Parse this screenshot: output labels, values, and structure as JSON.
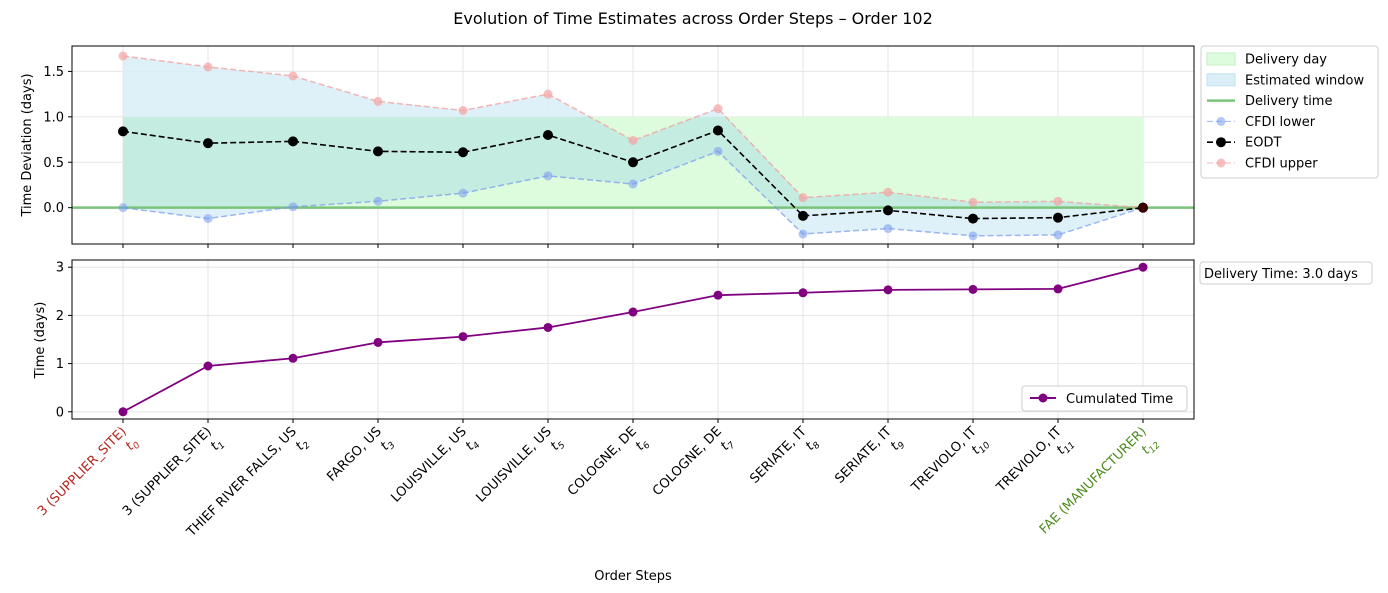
{
  "figure": {
    "title": "Evolution of Time Estimates across Order Steps – Order 102",
    "xlabel": "Order Steps"
  },
  "colors": {
    "delivery_day": "#ddfcdd",
    "estimated_window": "#d9eef7",
    "overlap": "#c5ece0",
    "delivery_time_line": "#7ac47a",
    "cfdi_lower": "#7799ee",
    "eodt": "#000000",
    "cfdi_upper": "#f4a3a3",
    "cumulated": "#800080",
    "label_start": "#b3261e",
    "label_end": "#4c8c1d",
    "label_default": "#000000"
  },
  "chart_data": [
    {
      "type": "line",
      "ylabel": "Time Deviation (days)",
      "ylim": [
        -0.4,
        1.78
      ],
      "yticks": [
        0.0,
        0.5,
        1.0,
        1.5
      ],
      "ytick_labels": [
        "0.0",
        "0.5",
        "1.0",
        "1.5"
      ],
      "grid": true,
      "legend_position": "outside-right-top",
      "delivery_day_band": [
        0.0,
        1.0
      ],
      "delivery_time_value": 0.0,
      "legend": [
        "Delivery day",
        "Estimated window",
        "Delivery time",
        "CFDI lower",
        "EODT",
        "CFDI upper"
      ],
      "series": [
        {
          "name": "CFDI lower",
          "values": [
            0.0,
            -0.12,
            0.01,
            0.07,
            0.16,
            0.35,
            0.26,
            0.62,
            -0.29,
            -0.23,
            -0.31,
            -0.3,
            0.0
          ]
        },
        {
          "name": "EODT",
          "values": [
            0.84,
            0.71,
            0.73,
            0.62,
            0.61,
            0.8,
            0.5,
            0.85,
            -0.09,
            -0.03,
            -0.12,
            -0.11,
            0.0
          ]
        },
        {
          "name": "CFDI upper",
          "values": [
            1.67,
            1.55,
            1.45,
            1.17,
            1.07,
            1.25,
            0.74,
            1.09,
            0.11,
            0.17,
            0.06,
            0.07,
            0.0
          ]
        }
      ]
    },
    {
      "type": "line",
      "ylabel": "Time (days)",
      "ylim": [
        -0.15,
        3.15
      ],
      "yticks": [
        0,
        1,
        2,
        3
      ],
      "ytick_labels": [
        "0",
        "1",
        "2",
        "3"
      ],
      "grid": true,
      "legend_position": "lower-right",
      "legend": [
        "Cumulated Time"
      ],
      "annotation": "Delivery Time: 3.0 days",
      "series": [
        {
          "name": "Cumulated Time",
          "values": [
            0.0,
            0.95,
            1.11,
            1.44,
            1.56,
            1.75,
            2.07,
            2.42,
            2.47,
            2.53,
            2.54,
            2.55,
            3.0
          ]
        }
      ]
    }
  ],
  "x_labels": [
    {
      "place": "3 (SUPPLIER_SITE)",
      "sub": "0",
      "role": "start"
    },
    {
      "place": "3 (SUPPLIER_SITE)",
      "sub": "1",
      "role": "default"
    },
    {
      "place": "THIEF RIVER FALLS, US",
      "sub": "2",
      "role": "default"
    },
    {
      "place": "FARGO, US",
      "sub": "3",
      "role": "default"
    },
    {
      "place": "LOUISVILLE, US",
      "sub": "4",
      "role": "default"
    },
    {
      "place": "LOUISVILLE, US",
      "sub": "5",
      "role": "default"
    },
    {
      "place": "COLOGNE, DE",
      "sub": "6",
      "role": "default"
    },
    {
      "place": "COLOGNE, DE",
      "sub": "7",
      "role": "default"
    },
    {
      "place": "SERIATE, IT",
      "sub": "8",
      "role": "default"
    },
    {
      "place": "SERIATE, IT",
      "sub": "9",
      "role": "default"
    },
    {
      "place": "TREVIOLO, IT",
      "sub": "10",
      "role": "default"
    },
    {
      "place": "TREVIOLO, IT",
      "sub": "11",
      "role": "default"
    },
    {
      "place": "FAE (MANUFACTURER)",
      "sub": "12",
      "role": "end"
    }
  ]
}
